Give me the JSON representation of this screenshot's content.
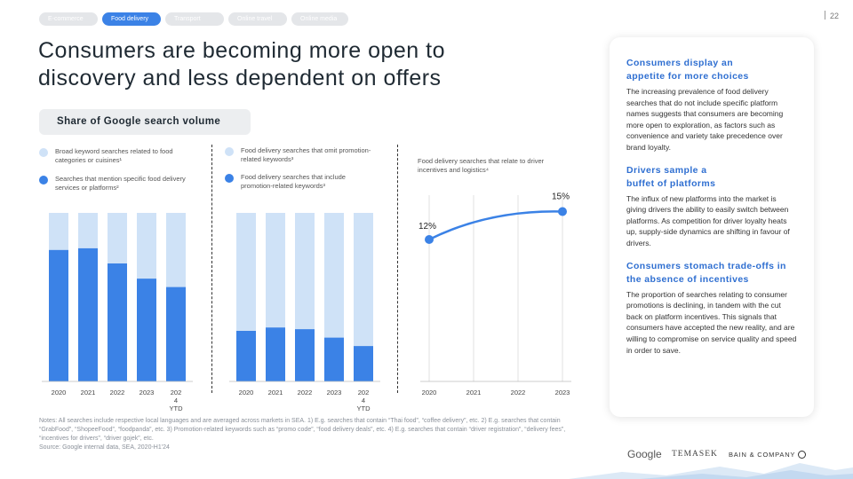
{
  "tabs": [
    "E-commerce",
    "Food delivery",
    "Transport",
    "Online travel",
    "Online media"
  ],
  "page_number": "22",
  "title": "Consumers are becoming more open to discovery and less dependent on offers",
  "subtitle": "Share of Google search volume",
  "colors": {
    "light_bar": "#cfe2f7",
    "dark_bar": "#3b82e6",
    "accent": "#2f6fd1"
  },
  "legend1": {
    "light": "Broad keyword searches related to food categories or cuisines¹",
    "dark": "Searches that mention specific food delivery services or platforms²"
  },
  "legend2": {
    "light": "Food delivery searches that omit promotion-related keywords³",
    "dark": "Food delivery searches that include promotion-related keywords³"
  },
  "line_caption": "Food delivery searches that relate to driver incentives and logistics⁴",
  "chart_data": [
    {
      "type": "bar",
      "stacked": true,
      "categories": [
        "2020",
        "2021",
        "2022",
        "2023",
        "2024 YTD"
      ],
      "series": [
        {
          "name": "Searches that mention specific food delivery services or platforms",
          "values": [
            78,
            79,
            70,
            61,
            56
          ]
        },
        {
          "name": "Broad keyword searches related to food categories or cuisines",
          "values": [
            22,
            21,
            30,
            39,
            44
          ]
        }
      ],
      "ylim": [
        0,
        100
      ]
    },
    {
      "type": "bar",
      "stacked": true,
      "categories": [
        "2020",
        "2021",
        "2022",
        "2023",
        "2024 YTD"
      ],
      "series": [
        {
          "name": "Food delivery searches that include promotion-related keywords",
          "values": [
            30,
            32,
            31,
            26,
            21
          ]
        },
        {
          "name": "Food delivery searches that omit promotion-related keywords",
          "values": [
            70,
            68,
            69,
            74,
            79
          ]
        }
      ],
      "ylim": [
        0,
        100
      ]
    },
    {
      "type": "line",
      "x": [
        "2020",
        "2021",
        "2022",
        "2023"
      ],
      "shown_points": [
        {
          "x": "2020",
          "y": 12,
          "label": "12%"
        },
        {
          "x": "2023",
          "y": 15,
          "label": "15%"
        }
      ],
      "ylim": [
        0,
        20
      ]
    }
  ],
  "sidebar": [
    {
      "heading": "Consumers display an appetite for more choices",
      "body": "The increasing prevalence of food delivery searches that do not include specific platform names suggests that consumers are becoming more open to exploration, as factors such as convenience and variety take precedence over brand loyalty."
    },
    {
      "heading": "Drivers sample a buffet of platforms",
      "body": "The influx of new platforms into the market is giving drivers the ability to easily switch between platforms. As competition for driver loyalty heats up, supply-side dynamics are shifting in favour of drivers."
    },
    {
      "heading": "Consumers stomach trade-offs in the absence of incentives",
      "body": "The proportion of searches relating to consumer promotions is declining, in tandem with the cut back on platform incentives. This signals that consumers have accepted the new reality, and are willing to compromise on service quality and speed in order to save."
    }
  ],
  "notes": "Notes: All searches include respective local languages and are averaged across markets in SEA. 1) E.g. searches that contain “Thai food”, “coffee delivery”, etc. 2) E.g. searches that contain “GrabFood”, “ShopeeFood”, “foodpanda”, etc. 3) Promotion-related keywords such as “promo code”, “food delivery deals”, etc. 4) E.g. searches that contain “driver registration”, “delivery fees”, “incentives for drivers”, “driver gojek”, etc.",
  "source": "Source: Google internal data, SEA, 2020-H1'24",
  "logos": {
    "google": "Google",
    "temasek": "TEMASEK",
    "bain": "BAIN & COMPANY"
  }
}
